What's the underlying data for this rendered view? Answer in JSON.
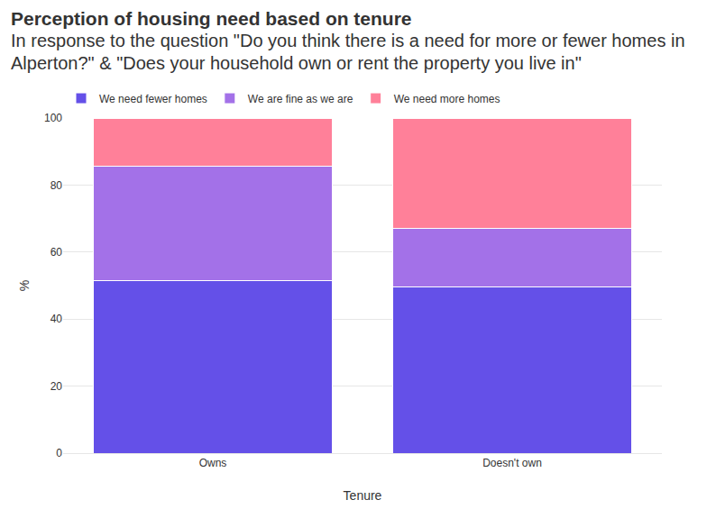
{
  "chart_data": {
    "type": "bar",
    "title": "Perception of housing need based on tenure",
    "subtitle": "In response to the question \"Do you think there is a need for more or fewer homes in Alperton?\" & \"Does your household own or rent the property you live in\"",
    "x_label": "Tenure",
    "y_label": "%",
    "categories": [
      "Owns",
      "Doesn't own"
    ],
    "series": [
      {
        "name": "We need fewer homes",
        "color": "#6450e8",
        "values": [
          51.5,
          49.5
        ]
      },
      {
        "name": "We are fine as we are",
        "color": "#a371e8",
        "values": [
          34,
          17.5
        ]
      },
      {
        "name": "We need more homes",
        "color": "#ff8099",
        "values": [
          14.5,
          33
        ]
      }
    ],
    "stacked": true,
    "ylim": [
      0,
      100
    ],
    "yticks": [
      0,
      20,
      40,
      60,
      80,
      100
    ],
    "grid": true,
    "legend": "top-left"
  }
}
